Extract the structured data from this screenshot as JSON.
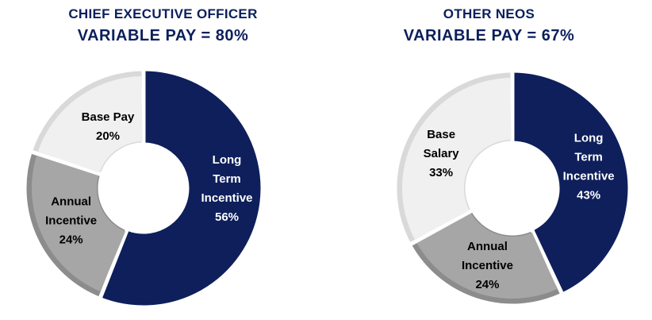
{
  "chart_data": [
    {
      "type": "pie",
      "title": "CHIEF EXECUTIVE OFFICER",
      "subtitle": "VARIABLE PAY = 80%",
      "slices": [
        {
          "label": [
            "Long",
            "Term",
            "Incentive",
            "56%"
          ],
          "value": 56,
          "color": "#0e1f5b",
          "text_color": "#ffffff"
        },
        {
          "label": [
            "Annual",
            "Incentive",
            "24%"
          ],
          "value": 24,
          "color": "#a6a6a6",
          "text_color": "#000000"
        },
        {
          "label": [
            "Base Pay",
            "20%"
          ],
          "value": 20,
          "color": "#f0f0f0",
          "text_color": "#000000"
        }
      ]
    },
    {
      "type": "pie",
      "title": "OTHER NEOS",
      "subtitle": "VARIABLE PAY = 67%",
      "slices": [
        {
          "label": [
            "Long",
            "Term",
            "Incentive",
            "43%"
          ],
          "value": 43,
          "color": "#0e1f5b",
          "text_color": "#ffffff"
        },
        {
          "label": [
            "Annual",
            "Incentive",
            "24%"
          ],
          "value": 24,
          "color": "#a6a6a6",
          "text_color": "#000000"
        },
        {
          "label": [
            "Base",
            "Salary",
            "33%"
          ],
          "value": 33,
          "color": "#f0f0f0",
          "text_color": "#000000"
        }
      ]
    }
  ]
}
